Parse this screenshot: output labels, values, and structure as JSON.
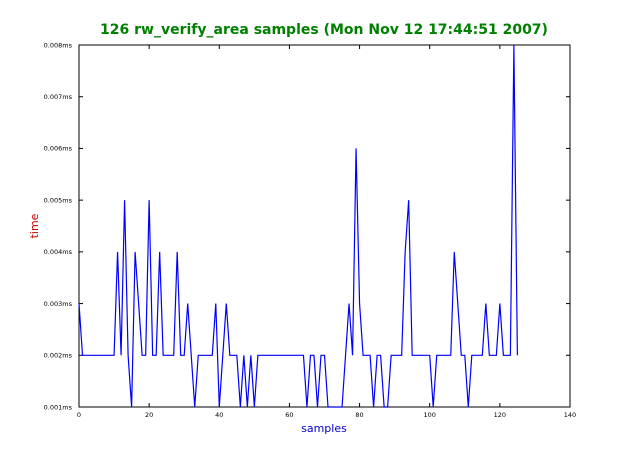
{
  "chart_data": {
    "type": "line",
    "title": "126 rw_verify_area samples (Mon Nov 12 17:44:51 2007)",
    "xlabel": "samples",
    "ylabel": "time",
    "xlim": [
      0,
      140
    ],
    "ylim": [
      0.001,
      0.008
    ],
    "x_ticks": [
      "0",
      "20",
      "40",
      "60",
      "80",
      "100",
      "120",
      "140"
    ],
    "y_ticks": [
      "0.001ms",
      "0.002ms",
      "0.003ms",
      "0.004ms",
      "0.005ms",
      "0.006ms",
      "0.007ms",
      "0.008ms"
    ],
    "grid": false,
    "colors": {
      "title": "#008000",
      "xlabel": "#0000cc",
      "ylabel": "#cc0000",
      "line": "#0000ff"
    },
    "series": [
      {
        "values": [
          0.003,
          0.002,
          0.002,
          0.002,
          0.002,
          0.002,
          0.002,
          0.002,
          0.002,
          0.002,
          0.002,
          0.004,
          0.002,
          0.005,
          0.002,
          0.001,
          0.004,
          0.003,
          0.002,
          0.002,
          0.005,
          0.002,
          0.002,
          0.004,
          0.002,
          0.002,
          0.002,
          0.002,
          0.004,
          0.002,
          0.002,
          0.003,
          0.002,
          0.001,
          0.002,
          0.002,
          0.002,
          0.002,
          0.002,
          0.003,
          0.001,
          0.002,
          0.003,
          0.002,
          0.002,
          0.002,
          0.001,
          0.002,
          0.001,
          0.002,
          0.001,
          0.002,
          0.002,
          0.002,
          0.002,
          0.002,
          0.002,
          0.002,
          0.002,
          0.002,
          0.002,
          0.002,
          0.002,
          0.002,
          0.002,
          0.001,
          0.002,
          0.002,
          0.001,
          0.002,
          0.002,
          0.001,
          0.001,
          0.001,
          0.001,
          0.001,
          0.002,
          0.003,
          0.002,
          0.006,
          0.003,
          0.002,
          0.002,
          0.002,
          0.001,
          0.002,
          0.002,
          0.001,
          0.001,
          0.002,
          0.002,
          0.002,
          0.002,
          0.004,
          0.005,
          0.002,
          0.002,
          0.002,
          0.002,
          0.002,
          0.002,
          0.001,
          0.002,
          0.002,
          0.002,
          0.002,
          0.002,
          0.004,
          0.003,
          0.002,
          0.002,
          0.001,
          0.002,
          0.002,
          0.002,
          0.002,
          0.003,
          0.002,
          0.002,
          0.002,
          0.003,
          0.002,
          0.002,
          0.002,
          0.008,
          0.002
        ]
      }
    ]
  }
}
